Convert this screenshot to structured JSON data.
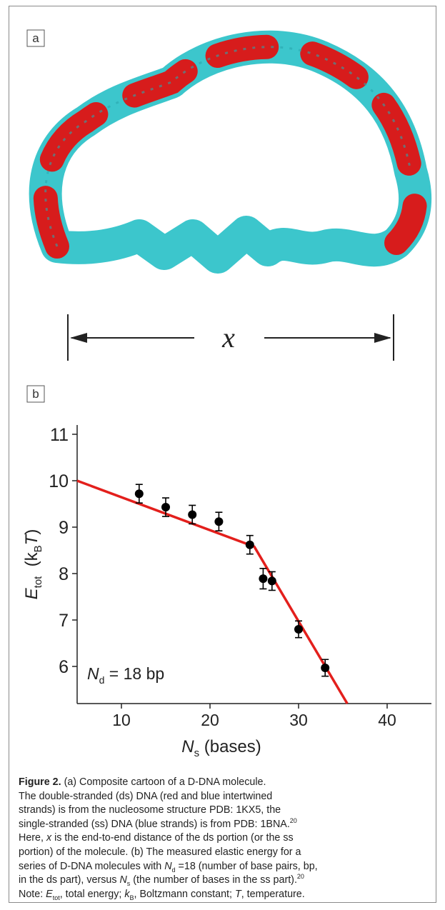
{
  "panels": {
    "a": {
      "label": "a",
      "symbol": "x"
    },
    "b": {
      "label": "b"
    }
  },
  "chart_data": {
    "type": "scatter",
    "x_label": [
      "N",
      "s",
      " (bases)"
    ],
    "y_label": [
      "E",
      "tot",
      "  (k",
      "B",
      "T",
      ")"
    ],
    "annotation": [
      "N",
      "d",
      " = 18 bp"
    ],
    "xlim": [
      5,
      45
    ],
    "xticks": [
      10,
      20,
      30,
      40
    ],
    "ylim": [
      5.2,
      11.2
    ],
    "yticks": [
      6,
      7,
      8,
      9,
      10,
      11
    ],
    "grid": false,
    "series": [
      {
        "type": "scatter",
        "color": "#000000",
        "x": [
          12,
          15,
          18,
          21,
          24.5,
          26,
          27,
          30,
          33
        ],
        "values": [
          9.72,
          9.43,
          9.27,
          9.12,
          8.62,
          7.89,
          7.84,
          6.8,
          5.97
        ],
        "errors": [
          0.2,
          0.2,
          0.2,
          0.2,
          0.2,
          0.22,
          0.2,
          0.18,
          0.18
        ]
      },
      {
        "type": "line",
        "color": "#e31f1c",
        "x": [
          5,
          25,
          35.5
        ],
        "values": [
          10,
          8.58,
          5.2
        ]
      }
    ]
  },
  "caption": {
    "lines": [
      [
        "Figure 2.",
        " (a) Composite cartoon of a D-DNA molecule."
      ],
      [
        "The double-stranded (ds) DNA (red and blue intertwined"
      ],
      [
        "strands) is from the nucleosome structure PDB: 1KX5, the"
      ],
      [
        "single-stranded (ss) DNA (blue strands) is from PDB: 1BNA.",
        "20"
      ],
      [
        "Here, ",
        "x",
        " is the end-to-end distance of the ds portion (or the ss"
      ],
      [
        "portion) of the molecule. (b) The measured elastic energy for a"
      ],
      [
        "series of D-DNA molecules with ",
        "N",
        "d",
        " =18 (number of base pairs, bp,"
      ],
      [
        "in the ds part), versus ",
        "N",
        "s",
        " (the number of bases in the ss part).",
        "20"
      ],
      [
        "Note: ",
        "E",
        "tot",
        ", total energy; ",
        "k",
        "B",
        ", Boltzmann constant; ",
        "T",
        ", temperature."
      ]
    ]
  }
}
